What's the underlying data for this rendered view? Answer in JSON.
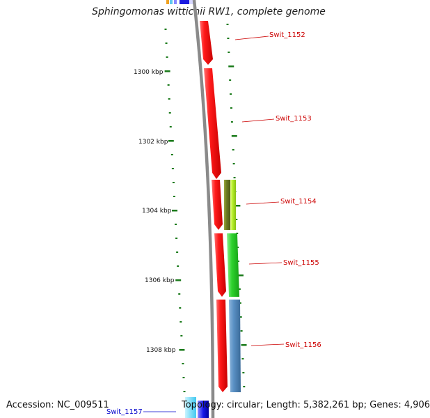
{
  "title": "Sphingomonas wittichii RW1, complete genome",
  "footer": {
    "accession": "Accession: NC_009511",
    "topology": "Topology: circular; Length: 5,382,261 bp; Genes: 4,906"
  },
  "colors": {
    "backbone": "#8a8a8a",
    "tick": "#1a7a1a",
    "reverse_strand_gene": "#ee1111",
    "label_red": "#cc0000",
    "label_blue": "#0000cc"
  },
  "axis_labels": [
    "1300 kbp",
    "1302 kbp",
    "1304 kbp",
    "1306 kbp",
    "1308 kbp"
  ],
  "gene_labels": [
    {
      "name": "Swit_1152",
      "color": "#cc0000"
    },
    {
      "name": "Swit_1153",
      "color": "#cc0000"
    },
    {
      "name": "Swit_1154",
      "color": "#cc0000"
    },
    {
      "name": "Swit_1155",
      "color": "#cc0000"
    },
    {
      "name": "Swit_1156",
      "color": "#cc0000"
    },
    {
      "name": "Swit_1157",
      "color": "#0000cc"
    }
  ],
  "features": [
    {
      "strand": "reverse",
      "color": "#ee1111"
    },
    {
      "strand": "reverse",
      "color": "#ee1111"
    },
    {
      "strand": "reverse",
      "color": "#ee1111"
    },
    {
      "strand": "reverse",
      "color": "#ee1111"
    },
    {
      "strand": "reverse",
      "color": "#ee1111"
    },
    {
      "strand": "forward",
      "color": "#6b7a22"
    },
    {
      "strand": "forward",
      "color": "#a8e81a"
    },
    {
      "strand": "forward",
      "color": "#22cc22"
    },
    {
      "strand": "forward",
      "color": "#4682b4"
    }
  ]
}
